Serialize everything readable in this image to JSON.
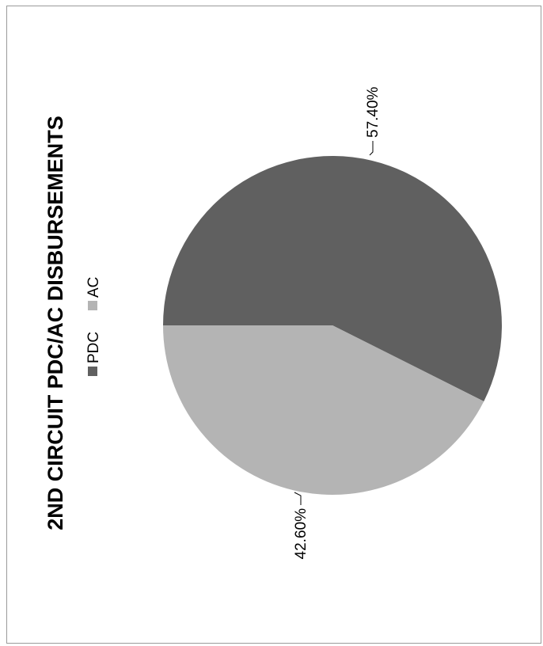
{
  "chart_data": {
    "type": "pie",
    "title": "2ND CIRCUIT PDC/AC DISBURSEMENTS",
    "categories": [
      "PDC",
      "AC"
    ],
    "values": [
      57.4,
      42.6
    ],
    "data_labels": [
      "57.40%",
      "42.60%"
    ],
    "colors": [
      "#606060",
      "#b4b4b4"
    ],
    "legend": {
      "placement": "top",
      "entries": [
        "PDC",
        "AC"
      ]
    }
  }
}
